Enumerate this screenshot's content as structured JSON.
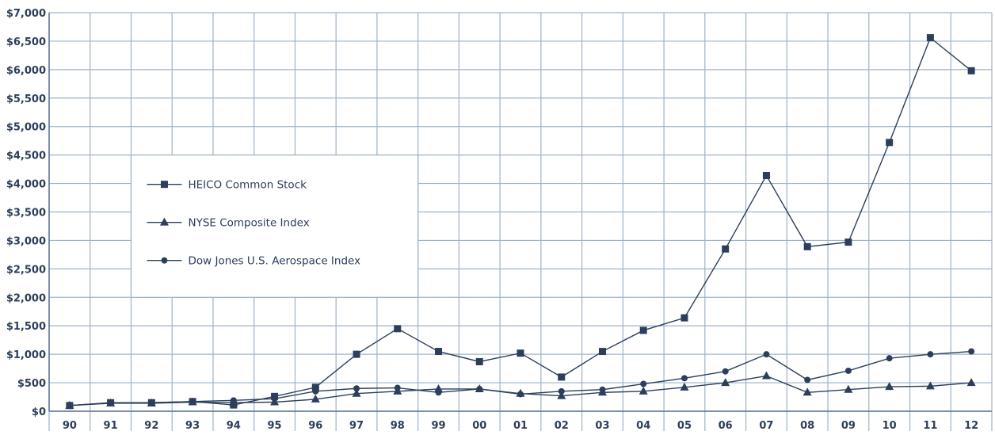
{
  "colors": {
    "grid": "#9db2cb",
    "axis": "#5b7190",
    "series": "#2c3e5c",
    "text": "#2c3e5c"
  },
  "legend": {
    "items": [
      {
        "label": "HEICO Common Stock",
        "marker": "square"
      },
      {
        "label": "NYSE Composite Index",
        "marker": "triangle"
      },
      {
        "label": "Dow Jones U.S. Aerospace Index",
        "marker": "circle"
      }
    ]
  },
  "chart_data": {
    "type": "line",
    "categories": [
      "90",
      "91",
      "92",
      "93",
      "94",
      "95",
      "96",
      "97",
      "98",
      "99",
      "00",
      "01",
      "02",
      "03",
      "04",
      "05",
      "06",
      "07",
      "08",
      "09",
      "10",
      "11",
      "12"
    ],
    "y_ticks": [
      "$0",
      "$500",
      "$1,000",
      "$1,500",
      "$2,000",
      "$2,500",
      "$3,000",
      "$3,500",
      "$4,000",
      "$4,500",
      "$5,000",
      "$5,500",
      "$6,000",
      "$6,500",
      "$7,000"
    ],
    "ylim": [
      0,
      7000
    ],
    "grid": true,
    "legend_position": "left",
    "series": [
      {
        "name": "HEICO Common Stock",
        "marker": "square",
        "values": [
          100,
          150,
          150,
          170,
          110,
          260,
          420,
          1000,
          1450,
          1050,
          870,
          1020,
          600,
          1050,
          1420,
          1640,
          2850,
          4140,
          2890,
          2970,
          4720,
          6560,
          5980
        ]
      },
      {
        "name": "NYSE Composite Index",
        "marker": "triangle",
        "values": [
          100,
          140,
          140,
          160,
          150,
          160,
          210,
          310,
          350,
          390,
          390,
          310,
          270,
          330,
          350,
          420,
          500,
          620,
          330,
          380,
          430,
          440,
          500
        ]
      },
      {
        "name": "Dow Jones U.S. Aerospace Index",
        "marker": "circle",
        "values": [
          100,
          150,
          150,
          170,
          190,
          220,
          350,
          400,
          410,
          330,
          390,
          300,
          350,
          380,
          480,
          580,
          700,
          1000,
          550,
          710,
          930,
          1000,
          1050
        ]
      }
    ]
  }
}
